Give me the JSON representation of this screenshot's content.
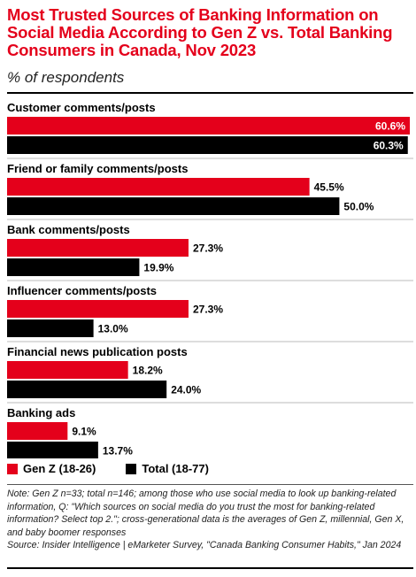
{
  "title": "Most Trusted Sources of Banking Information on Social Media According to Gen Z vs. Total Banking Consumers in Canada, Nov 2023",
  "subtitle": "% of respondents",
  "colors": {
    "genz": "#e4001b",
    "total": "#000000",
    "title": "#e4001b"
  },
  "chart_data": {
    "type": "bar",
    "orientation": "horizontal",
    "categories": [
      "Customer comments/posts",
      "Friend or family comments/posts",
      "Bank comments/posts",
      "Influencer comments/posts",
      "Financial news publication posts",
      "Banking ads"
    ],
    "series": [
      {
        "name": "Gen Z (18-26)",
        "color": "#e4001b",
        "values": [
          60.6,
          45.5,
          27.3,
          27.3,
          18.2,
          9.1
        ],
        "labels": [
          "60.6%",
          "45.5%",
          "27.3%",
          "27.3%",
          "18.2%",
          "9.1%"
        ]
      },
      {
        "name": "Total (18-77)",
        "color": "#000000",
        "values": [
          60.3,
          50.0,
          19.9,
          13.0,
          24.0,
          13.7
        ],
        "labels": [
          "60.3%",
          "50.0%",
          "19.9%",
          "13.0%",
          "24.0%",
          "13.7%"
        ]
      }
    ],
    "xlim": [
      0,
      60.6
    ],
    "legend_position": "bottom-left",
    "grid": false
  },
  "legend": {
    "genz_label": "Gen Z (18-26)",
    "total_label": "Total (18-77)"
  },
  "footnote": {
    "note": "Note: Gen Z n=33; total n=146; among those who use social media to look up banking-related information, Q: \"Which sources on social media do you trust the most for banking-related information? Select top 2.\"; cross-generational data is the averages of Gen Z, millennial, Gen X, and baby boomer responses",
    "source": "Source: Insider Intelligence | eMarketer Survey, \"Canada Banking Consumer Habits,\" Jan 2024"
  }
}
